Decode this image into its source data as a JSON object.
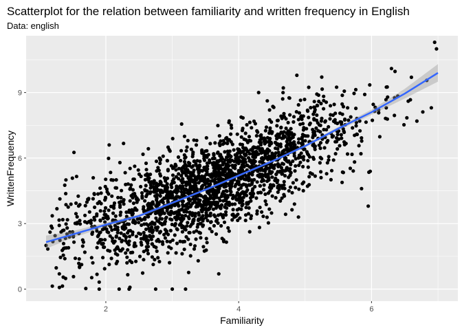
{
  "chart_data": {
    "type": "scatter",
    "title": "Scatterplot for the relation between familiarity and written frequency in English",
    "subtitle": "Data: english",
    "xlabel": "Familiarity",
    "ylabel": "WrittenFrequency",
    "xlim": [
      0.8,
      7.3
    ],
    "ylim": [
      -0.55,
      11.6
    ],
    "x_ticks": [
      2,
      4,
      6
    ],
    "y_ticks": [
      0,
      3,
      6,
      9
    ],
    "x_minor_ticks": [
      3,
      5,
      7
    ],
    "y_minor_ticks": [
      1.5,
      4.5,
      7.5,
      10.5
    ],
    "grid": true,
    "legend": "none",
    "colors": {
      "panel_background": "#ebebeb",
      "grid": "#ffffff",
      "points": "#000000",
      "smooth_line": "#3366ff",
      "confidence_band": "#999999"
    },
    "points_summary": {
      "approx_count": 2200,
      "trend": "positive, curving upward",
      "notable_points": [
        {
          "x": 1.1,
          "y": 2.0
        },
        {
          "x": 1.3,
          "y": 0.7
        },
        {
          "x": 1.9,
          "y": 0.0
        },
        {
          "x": 2.05,
          "y": 6.6
        },
        {
          "x": 2.2,
          "y": 0.0
        },
        {
          "x": 2.35,
          "y": 0.0
        },
        {
          "x": 2.75,
          "y": 0.0
        },
        {
          "x": 3.0,
          "y": 0.0
        },
        {
          "x": 3.2,
          "y": 0.0
        },
        {
          "x": 3.7,
          "y": 0.7
        },
        {
          "x": 4.3,
          "y": 9.0
        },
        {
          "x": 4.9,
          "y": 3.3
        },
        {
          "x": 5.85,
          "y": 4.6
        },
        {
          "x": 5.95,
          "y": 3.8
        },
        {
          "x": 6.3,
          "y": 10.1
        },
        {
          "x": 6.6,
          "y": 9.7
        },
        {
          "x": 6.9,
          "y": 8.3
        },
        {
          "x": 6.95,
          "y": 11.3
        }
      ]
    },
    "smooth": {
      "method": "loess",
      "x": [
        1.1,
        1.5,
        2.0,
        2.5,
        3.0,
        3.5,
        4.0,
        4.5,
        5.0,
        5.5,
        6.0,
        6.5,
        7.0
      ],
      "y": [
        2.15,
        2.5,
        2.95,
        3.35,
        3.95,
        4.55,
        5.2,
        5.85,
        6.55,
        7.35,
        8.1,
        8.95,
        9.9
      ],
      "ci_halfwidth": [
        0.3,
        0.15,
        0.1,
        0.07,
        0.05,
        0.05,
        0.05,
        0.05,
        0.06,
        0.08,
        0.12,
        0.22,
        0.4
      ]
    }
  }
}
